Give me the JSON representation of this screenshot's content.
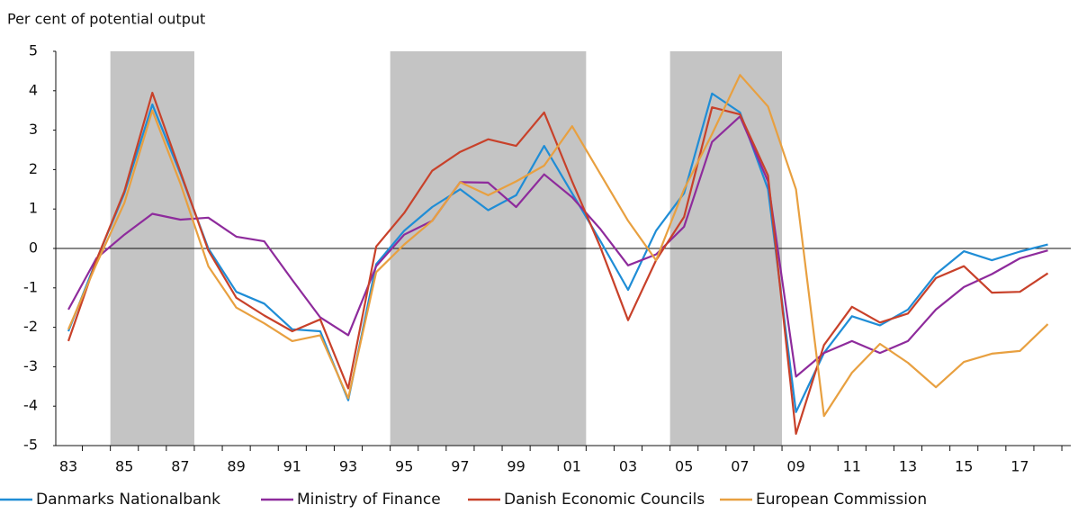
{
  "chart_data": {
    "type": "line",
    "y_label": "Per cent of potential output",
    "categories": [
      "83",
      null,
      "85",
      null,
      "87",
      null,
      "89",
      null,
      "91",
      null,
      "93",
      null,
      "95",
      null,
      "97",
      null,
      "99",
      null,
      "01",
      null,
      "03",
      null,
      "05",
      null,
      "07",
      null,
      "09",
      null,
      "11",
      null,
      "13",
      null,
      "15",
      null,
      "17",
      null
    ],
    "ylim": [
      -5,
      5
    ],
    "yticks": [
      -5,
      -4,
      -3,
      -2,
      -1,
      0,
      1,
      2,
      3,
      4,
      5
    ],
    "shaded_periods": [
      [
        1.5,
        4.5
      ],
      [
        11.5,
        18.5
      ],
      [
        21.5,
        25.5
      ]
    ],
    "series": [
      {
        "name": "Danmarks Nationalbank",
        "color": "#1f8dd6",
        "values": [
          -2.1,
          -0.3,
          1.4,
          3.65,
          1.9,
          0.0,
          -1.1,
          -1.4,
          -2.05,
          -2.1,
          -3.85,
          -0.4,
          0.45,
          1.05,
          1.5,
          0.97,
          1.35,
          2.6,
          1.4,
          0.2,
          -1.05,
          0.45,
          1.4,
          3.93,
          3.45,
          1.5,
          -4.15,
          -2.65,
          -1.72,
          -1.95,
          -1.55,
          -0.65,
          -0.07,
          -0.3,
          -0.08,
          0.1
        ]
      },
      {
        "name": "Ministry of Finance",
        "color": "#8e2b9c",
        "values": [
          -1.55,
          -0.25,
          0.35,
          0.88,
          0.73,
          0.78,
          0.3,
          0.18,
          -0.8,
          -1.75,
          -2.2,
          -0.45,
          0.35,
          0.7,
          1.68,
          1.67,
          1.05,
          1.88,
          1.3,
          0.5,
          -0.43,
          -0.15,
          0.55,
          2.7,
          3.35,
          1.7,
          -3.25,
          -2.65,
          -2.35,
          -2.65,
          -2.35,
          -1.55,
          -0.98,
          -0.65,
          -0.25,
          -0.05
        ]
      },
      {
        "name": "Danish Economic Councils",
        "color": "#c8412a",
        "values": [
          -2.35,
          -0.3,
          1.45,
          3.95,
          1.95,
          -0.05,
          -1.25,
          -1.7,
          -2.1,
          -1.8,
          -3.55,
          0.05,
          0.9,
          1.97,
          2.45,
          2.77,
          2.6,
          3.45,
          1.7,
          0.05,
          -1.82,
          -0.3,
          0.8,
          3.58,
          3.4,
          1.85,
          -4.7,
          -2.45,
          -1.48,
          -1.88,
          -1.65,
          -0.75,
          -0.45,
          -1.12,
          -1.1,
          -0.63
        ]
      },
      {
        "name": "European Commission",
        "color": "#e8a040",
        "values": [
          -2.05,
          -0.4,
          1.15,
          3.5,
          1.65,
          -0.45,
          -1.5,
          -1.9,
          -2.35,
          -2.2,
          -3.8,
          -0.6,
          0.1,
          0.7,
          1.68,
          1.35,
          1.7,
          2.1,
          3.1,
          1.9,
          0.7,
          -0.3,
          1.5,
          2.9,
          4.4,
          3.6,
          1.5,
          -4.25,
          -3.15,
          -2.42,
          -2.9,
          -3.52,
          -2.88,
          -2.67,
          -2.6,
          -1.92
        ]
      }
    ]
  }
}
